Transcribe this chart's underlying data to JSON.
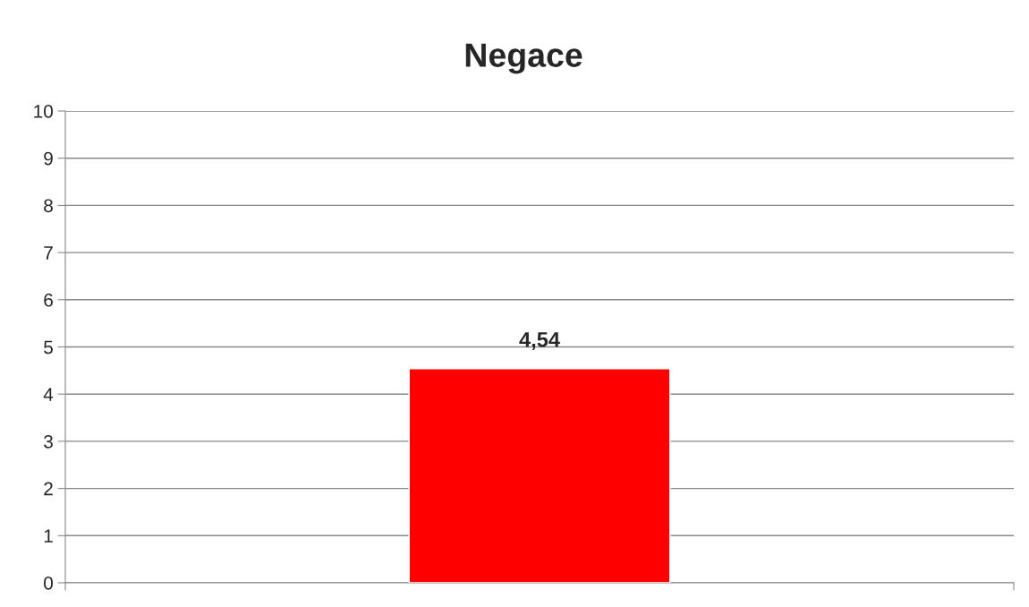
{
  "chart_data": {
    "type": "bar",
    "title": "Negace",
    "categories": [
      null
    ],
    "values": [
      4.54
    ],
    "color": "#ff0000",
    "value_labels": [
      "4,54"
    ],
    "ylim": [
      0,
      10
    ],
    "yticks": [
      0,
      1,
      2,
      3,
      4,
      5,
      6,
      7,
      8,
      9,
      10
    ],
    "grid": "y",
    "legend": false
  }
}
